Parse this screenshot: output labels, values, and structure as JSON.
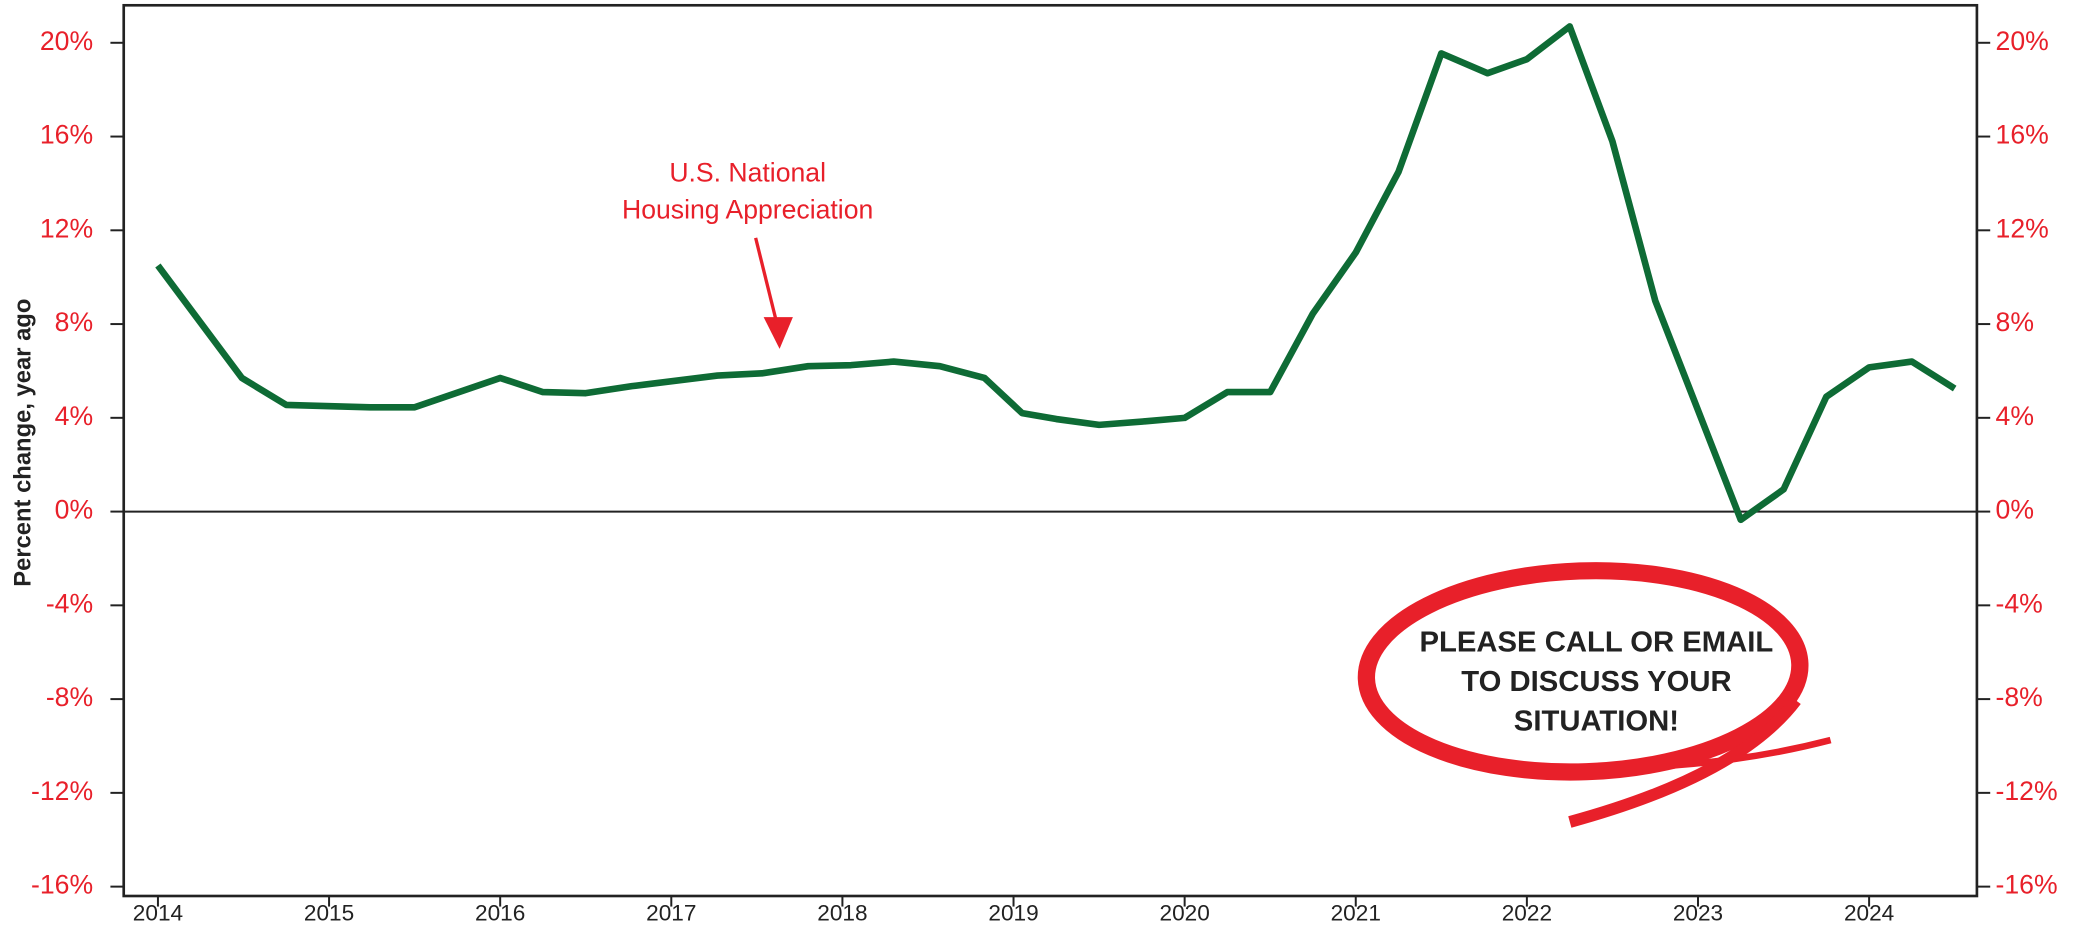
{
  "chart_data": {
    "type": "line",
    "y_label": "Percent change, year ago",
    "annotation": [
      "U.S. National",
      "Housing Appreciation"
    ],
    "callout": [
      "PLEASE CALL OR EMAIL",
      "TO DISCUSS YOUR",
      "SITUATION!"
    ],
    "color": "#0e6b35",
    "x": [
      2014.0,
      2014.49,
      2014.75,
      2015.24,
      2015.5,
      2016.0,
      2016.25,
      2016.5,
      2016.77,
      2017.27,
      2017.53,
      2017.8,
      2018.05,
      2018.3,
      2018.57,
      2018.83,
      2019.05,
      2019.25,
      2019.5,
      2019.77,
      2020.0,
      2020.25,
      2020.5,
      2020.75,
      2021.0,
      2021.25,
      2021.5,
      2021.77,
      2022.0,
      2022.25,
      2022.5,
      2022.75,
      2023.25,
      2023.5,
      2023.75,
      2024.0,
      2024.25,
      2024.5
    ],
    "values": [
      10.5,
      5.7,
      4.55,
      4.45,
      4.45,
      5.7,
      5.1,
      5.05,
      5.35,
      5.8,
      5.9,
      6.2,
      6.25,
      6.4,
      6.2,
      5.7,
      4.2,
      3.95,
      3.7,
      3.85,
      4.0,
      5.1,
      5.1,
      8.45,
      11.05,
      14.5,
      19.55,
      18.7,
      19.3,
      20.7,
      15.8,
      9.0,
      -0.35,
      0.95,
      4.9,
      6.15,
      6.4,
      5.25
    ],
    "xlim": [
      2013.8,
      2024.63
    ],
    "xticks": [
      2014,
      2015,
      2016,
      2017,
      2018,
      2019,
      2020,
      2021,
      2022,
      2023,
      2024
    ],
    "ylim": [
      -16.4,
      21.6
    ],
    "yticks": [
      {
        "value": -16,
        "label": "-16%"
      },
      {
        "value": -12,
        "label": "-12%"
      },
      {
        "value": -8,
        "label": "-8%"
      },
      {
        "value": -4,
        "label": "-4%"
      },
      {
        "value": 0,
        "label": "0%"
      },
      {
        "value": 4,
        "label": "4%"
      },
      {
        "value": 8,
        "label": "8%"
      },
      {
        "value": 12,
        "label": "12%"
      },
      {
        "value": 16,
        "label": "16%"
      },
      {
        "value": 20,
        "label": "20%"
      }
    ]
  }
}
